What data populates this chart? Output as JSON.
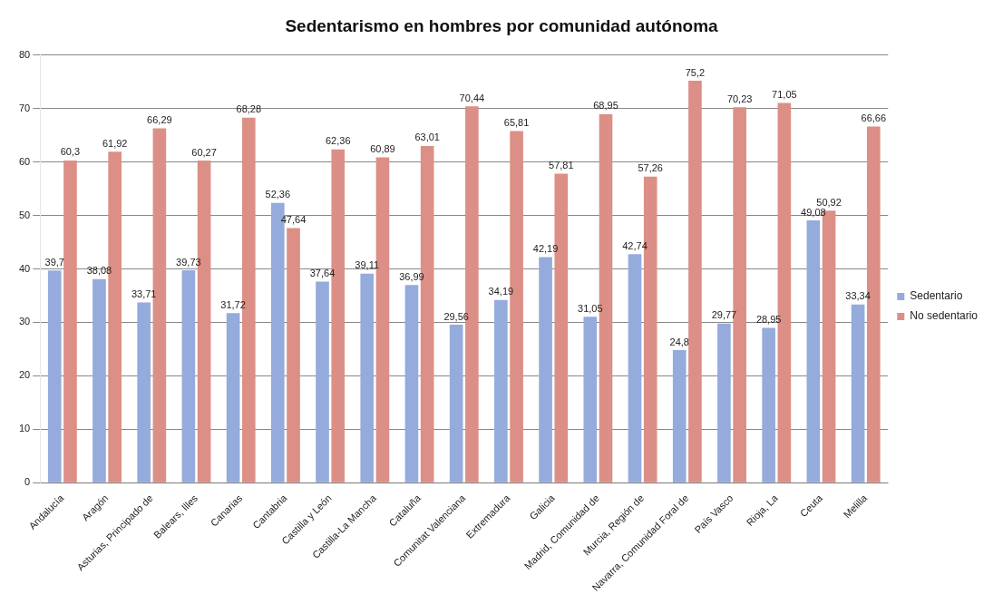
{
  "chart_data": {
    "type": "bar",
    "title": "Sedentarismo en hombres por comunidad autónoma",
    "categories": [
      "Andalucía",
      "Aragón",
      "Asturias, Principado de",
      "Balears, Illes",
      "Canarias",
      "Cantabria",
      "Castilla y León",
      "Castilla-La Mancha",
      "Cataluña",
      "Comunitat Valenciana",
      "Extremadura",
      "Galicia",
      "Madrid, Comunidad de",
      "Murcia, Región de",
      "Navarra, Comunidad Foral de",
      "País Vasco",
      "Rioja, La",
      "Ceuta",
      "Melilla"
    ],
    "series": [
      {
        "name": "Sedentario",
        "color": "#94abdc",
        "values": [
          39.7,
          38.08,
          33.71,
          39.73,
          31.72,
          52.36,
          37.64,
          39.11,
          36.99,
          29.56,
          34.19,
          42.19,
          31.05,
          42.74,
          24.8,
          29.77,
          28.95,
          49.08,
          33.34
        ],
        "value_labels": [
          "39,7",
          "38,08",
          "33,71",
          "39,73",
          "31,72",
          "52,36",
          "37,64",
          "39,11",
          "36,99",
          "29,56",
          "34,19",
          "42,19",
          "31,05",
          "42,74",
          "24,8",
          "29,77",
          "28,95",
          "49,08",
          "33,34"
        ]
      },
      {
        "name": "No sedentario",
        "color": "#dc8f86",
        "values": [
          60.3,
          61.92,
          66.29,
          60.27,
          68.28,
          47.64,
          62.36,
          60.89,
          63.01,
          70.44,
          65.81,
          57.81,
          68.95,
          57.26,
          75.2,
          70.23,
          71.05,
          50.92,
          66.66
        ],
        "value_labels": [
          "60,3",
          "61,92",
          "66,29",
          "60,27",
          "68,28",
          "47,64",
          "62,36",
          "60,89",
          "63,01",
          "70,44",
          "65,81",
          "57,81",
          "68,95",
          "57,26",
          "75,2",
          "70,23",
          "71,05",
          "50,92",
          "66,66"
        ]
      }
    ],
    "ylim": [
      0,
      80
    ],
    "yticks": [
      0,
      10,
      20,
      30,
      40,
      50,
      60,
      70,
      80
    ],
    "grid": "y",
    "legend": "right"
  }
}
